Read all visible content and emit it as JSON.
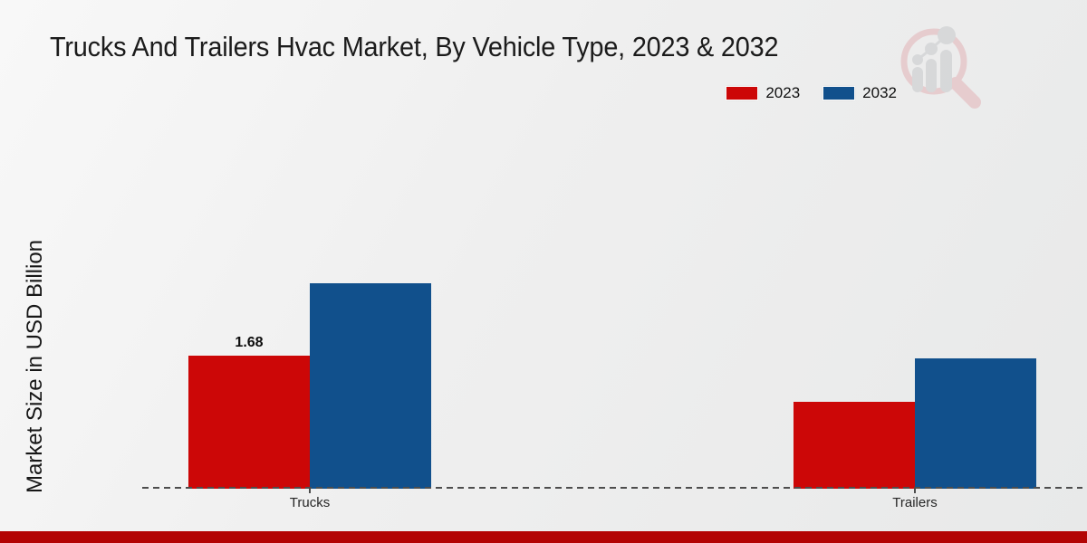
{
  "chart_data": {
    "type": "bar",
    "title": "Trucks And Trailers Hvac Market, By Vehicle Type, 2023 & 2032",
    "ylabel": "Market Size in USD Billion",
    "xlabel": "",
    "categories": [
      "Trucks",
      "Trailers"
    ],
    "series": [
      {
        "name": "2023",
        "color": "#cc0707",
        "values": [
          1.68,
          1.1
        ],
        "labels": [
          "1.68",
          ""
        ]
      },
      {
        "name": "2032",
        "color": "#11508c",
        "values": [
          2.59,
          1.65
        ],
        "labels": [
          "",
          ""
        ]
      }
    ],
    "ylim": [
      0,
      3.5
    ],
    "grid": false,
    "legend_position": "top-right",
    "baseline_style": "dashed",
    "accent_bar_color": "#b30404",
    "watermark_icon": "magnifier-bar-chart-logo"
  }
}
